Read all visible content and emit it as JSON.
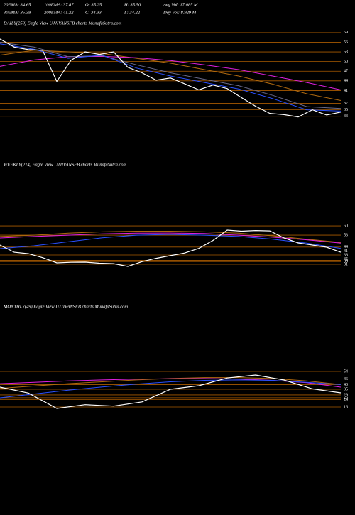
{
  "header": [
    "20EMA: 34.65",
    "100EMA: 37.87",
    "O: 35.25",
    "H: 35.50",
    "Avg Vol: 17.085 M",
    "30EMA: 35.38",
    "200EMA: 41.22",
    "C: 34.33",
    "L: 34.22",
    "Day Vol: 8.929 M"
  ],
  "chart_data": [
    {
      "type": "line",
      "title": "DAILY(250) Eagle  View  UJJIVANSFB charts MunafaSutra.com",
      "ylim": [
        30.5,
        62.5
      ],
      "yticks": [
        59,
        56,
        53,
        50,
        47,
        44,
        41,
        37,
        35,
        33
      ],
      "grid": true,
      "grid_color": "#a85a00",
      "series": [
        {
          "color": "#b06a10",
          "values": [
            52,
            53.5,
            53,
            52.5,
            51,
            49.5,
            47.5,
            45.5,
            43,
            40,
            37.9
          ]
        },
        {
          "color": "#e020e0",
          "values": [
            48.5,
            50.5,
            51.5,
            51.6,
            51.2,
            50.3,
            49,
            47.5,
            45.5,
            43.5,
            41.2
          ]
        },
        {
          "color": "#6a6a8a",
          "values": [
            56,
            54.5,
            51.5,
            51.8,
            49,
            46.5,
            44.5,
            42.5,
            39.5,
            36,
            35.4
          ]
        },
        {
          "color": "#2a50ff",
          "values": [
            55.5,
            53.8,
            51,
            52,
            48,
            45.5,
            43.5,
            41.5,
            38.5,
            35,
            34.6
          ]
        },
        {
          "color": "#ffffff",
          "values": [
            57,
            54.5,
            53.7,
            53.5,
            43.8,
            50.4,
            53,
            52.2,
            53,
            48.2,
            46.5,
            44.2,
            44.9,
            43.1,
            41.2,
            42.7,
            41.6,
            38.8,
            36.1,
            33.9,
            33.5,
            32.8,
            35,
            33.4,
            34.3
          ]
        }
      ]
    },
    {
      "type": "line",
      "title": "WEEKLY(214) Eagle  View  UJJIVANSFB charts MunafaSutra.com",
      "ylim": [
        26.7,
        69.7
      ],
      "yticks": [
        60,
        53,
        44,
        41,
        38,
        35,
        34,
        33,
        31
      ],
      "grid": true,
      "grid_color": "#a85a00",
      "series": [
        {
          "color": "#b06a10",
          "values": [
            52,
            53,
            54.5,
            55.5,
            56,
            56,
            55.5,
            54.5,
            52.5,
            50,
            47.5
          ]
        },
        {
          "color": "#e020e0",
          "values": [
            50.9,
            52,
            53,
            54,
            54.5,
            54.6,
            54.2,
            53,
            51.5,
            49.5,
            47
          ]
        },
        {
          "color": "#2a50ff",
          "values": [
            42.8,
            45,
            48,
            51,
            53,
            53.6,
            53,
            52,
            50,
            47,
            43
          ]
        },
        {
          "color": "#ffffff",
          "values": [
            45.5,
            40.1,
            39,
            36,
            32.1,
            32.5,
            32.6,
            31.8,
            31.5,
            29.4,
            33,
            35.5,
            37.5,
            39.5,
            43,
            49,
            56.8,
            56,
            56.5,
            56.2,
            50.9,
            47.1,
            45.5,
            43.9,
            40.1
          ]
        }
      ]
    },
    {
      "type": "line",
      "title": "MONTHLY(49) Eagle  View  UJJIVANSFB charts MunafaSutra.com",
      "ylim": [
        10.7,
        71.5
      ],
      "yticks": [
        54,
        46,
        40,
        35,
        29,
        26,
        24,
        16
      ],
      "grid": true,
      "grid_color": "#a85a00",
      "series": [
        {
          "color": "#b06a10",
          "values": [
            36,
            38.5,
            41,
            43,
            45,
            46.5,
            47.5,
            47.5,
            46.5,
            44,
            40
          ]
        },
        {
          "color": "#e020e0",
          "values": [
            41,
            42.5,
            44,
            45,
            45.8,
            46.2,
            46.4,
            46,
            44.5,
            42,
            37.3
          ]
        },
        {
          "color": "#2a50ff",
          "values": [
            25.9,
            30,
            34,
            37.5,
            40.5,
            43,
            44.5,
            45,
            44.5,
            42.5,
            40
          ]
        },
        {
          "color": "#ffffff",
          "values": [
            37.3,
            31,
            14.5,
            18.5,
            17,
            21.5,
            35,
            38.8,
            47,
            50.2,
            44.9,
            35.5,
            31.2
          ]
        }
      ]
    }
  ]
}
